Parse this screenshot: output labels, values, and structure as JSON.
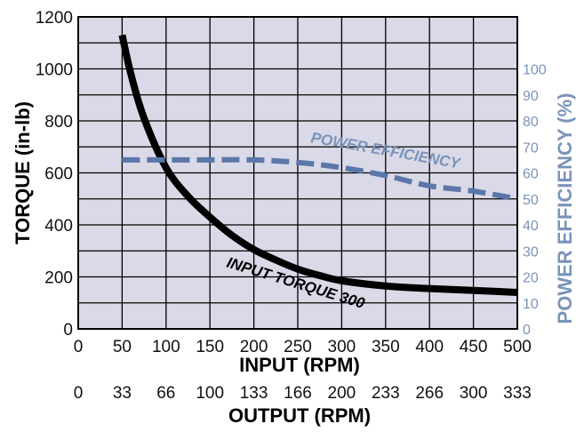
{
  "chart_data": {
    "type": "line",
    "xlabel": "INPUT (RPM)",
    "x2label": "OUTPUT (RPM)",
    "ylabel": "TORQUE (in-lb)",
    "y2label": "POWER EFFICIENCY (%)",
    "xlim": [
      0,
      500
    ],
    "ylim": [
      0,
      1200
    ],
    "y2lim": [
      0,
      120
    ],
    "x_ticks": [
      0,
      50,
      100,
      150,
      200,
      250,
      300,
      350,
      400,
      450,
      500
    ],
    "x2_ticks": [
      "0",
      "33",
      "66",
      "100",
      "133",
      "166",
      "200",
      "233",
      "266",
      "300",
      "333"
    ],
    "y_ticks": [
      0,
      200,
      400,
      600,
      800,
      1000,
      1200
    ],
    "y2_ticks": [
      0,
      10,
      20,
      30,
      40,
      50,
      60,
      70,
      80,
      90,
      100
    ],
    "grid": true,
    "series": [
      {
        "name": "INPUT TORQUE 300",
        "axis": "left",
        "color": "#000000",
        "style": "solid",
        "x": [
          50,
          60,
          75,
          100,
          125,
          150,
          175,
          200,
          225,
          250,
          275,
          300,
          350,
          400,
          450,
          500
        ],
        "y": [
          1130,
          980,
          810,
          620,
          510,
          430,
          360,
          305,
          265,
          230,
          205,
          185,
          165,
          155,
          148,
          140
        ]
      },
      {
        "name": "POWER EFFICIENCY",
        "axis": "right",
        "color": "#5b76a8",
        "style": "dashed",
        "x": [
          50,
          100,
          150,
          200,
          250,
          300,
          350,
          400,
          450,
          500
        ],
        "y": [
          65,
          65,
          65,
          65,
          64,
          62,
          59,
          55,
          53,
          50
        ]
      }
    ],
    "annotations": [
      {
        "text": "POWER EFFICIENCY",
        "color": "#7a93b8"
      },
      {
        "text": "INPUT TORQUE 300",
        "color": "#000000"
      }
    ]
  }
}
